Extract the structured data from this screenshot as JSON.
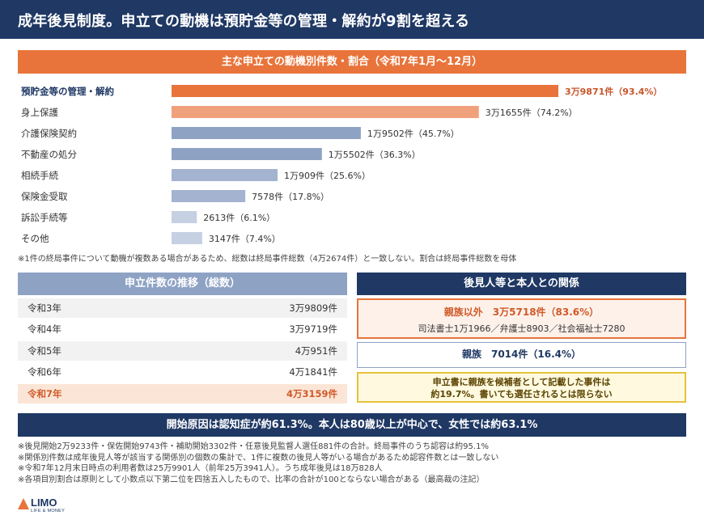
{
  "title": "成年後見制度。申立ての動機は預貯金等の管理・解約が9割を超える",
  "chart_data": {
    "type": "bar",
    "orientation": "horizontal",
    "title": "主な申立ての動機別件数・割合（令和7年1月～12月）",
    "categories": [
      "預貯金等の管理・解約",
      "身上保護",
      "介護保険契約",
      "不動産の処分",
      "相続手続",
      "保険金受取",
      "訴訟手続等",
      "その他"
    ],
    "values": [
      39871,
      31655,
      19502,
      15502,
      10909,
      7578,
      2613,
      3147
    ],
    "percent": [
      93.4,
      74.2,
      45.7,
      36.3,
      25.6,
      17.8,
      6.1,
      7.4
    ],
    "value_labels": [
      "3万9871件（93.4%）",
      "3万1655件（74.2%）",
      "1万9502件（45.7%）",
      "1万5502件（36.3%）",
      "1万909件（25.6%）",
      "7578件（17.8%）",
      "2613件（6.1%）",
      "3147件（7.4%）"
    ],
    "colors": [
      "#e8743b",
      "#f0a07a",
      "#8ea2c4",
      "#8ea2c4",
      "#a3b3d0",
      "#a3b3d0",
      "#c5d0e3",
      "#c5d0e3"
    ]
  },
  "chart_note": "※1件の終局事件について動機が複数ある場合があるため、総数は終局事件総数（4万2674件）と一致しない。割合は終局事件総数を母体",
  "filings": {
    "title": "申立件数の推移（総数）",
    "rows": [
      {
        "year": "令和3年",
        "count": "3万9809件"
      },
      {
        "year": "令和4年",
        "count": "3万9719件"
      },
      {
        "year": "令和5年",
        "count": "4万951件"
      },
      {
        "year": "令和6年",
        "count": "4万1841件"
      },
      {
        "year": "令和7年",
        "count": "4万3159件"
      }
    ]
  },
  "relationship": {
    "title": "後見人等と本人との関係",
    "non_relatives": "親族以外　3万5718件（83.6%）",
    "non_relatives_detail": "司法書士1万1966／弁護士8903／社会福祉士7280",
    "relatives": "親族　7014件（16.4%）",
    "note_line1": "申立書に親族を候補者として記載した事件は",
    "note_line2": "約19.7%。書いても選任されるとは限らない"
  },
  "banner": "開始原因は認知症が約61.3%。本人は80歳以上が中心で、女性では約63.1%",
  "footnotes": [
    "※後見開始2万9233件・保佐開始9743件・補助開始3302件・任意後見監督人選任881件の合計。終局事件のうち認容は約95.1%",
    "※関係別件数は成年後見人等が該当する関係別の個数の集計で、1件に複数の後見人等がいる場合があるため認容件数とは一致しない",
    "※令和7年12月末日時点の利用者数は25万9901人（前年25万3941人）。うち成年後見は18万828人",
    "※各項目別割合は原則として小数点以下第二位を四捨五入したもので、比率の合計が100とならない場合がある（最高裁の注記）"
  ],
  "logo": {
    "name": "LIMO",
    "tagline": "LIFE & MONEY"
  }
}
